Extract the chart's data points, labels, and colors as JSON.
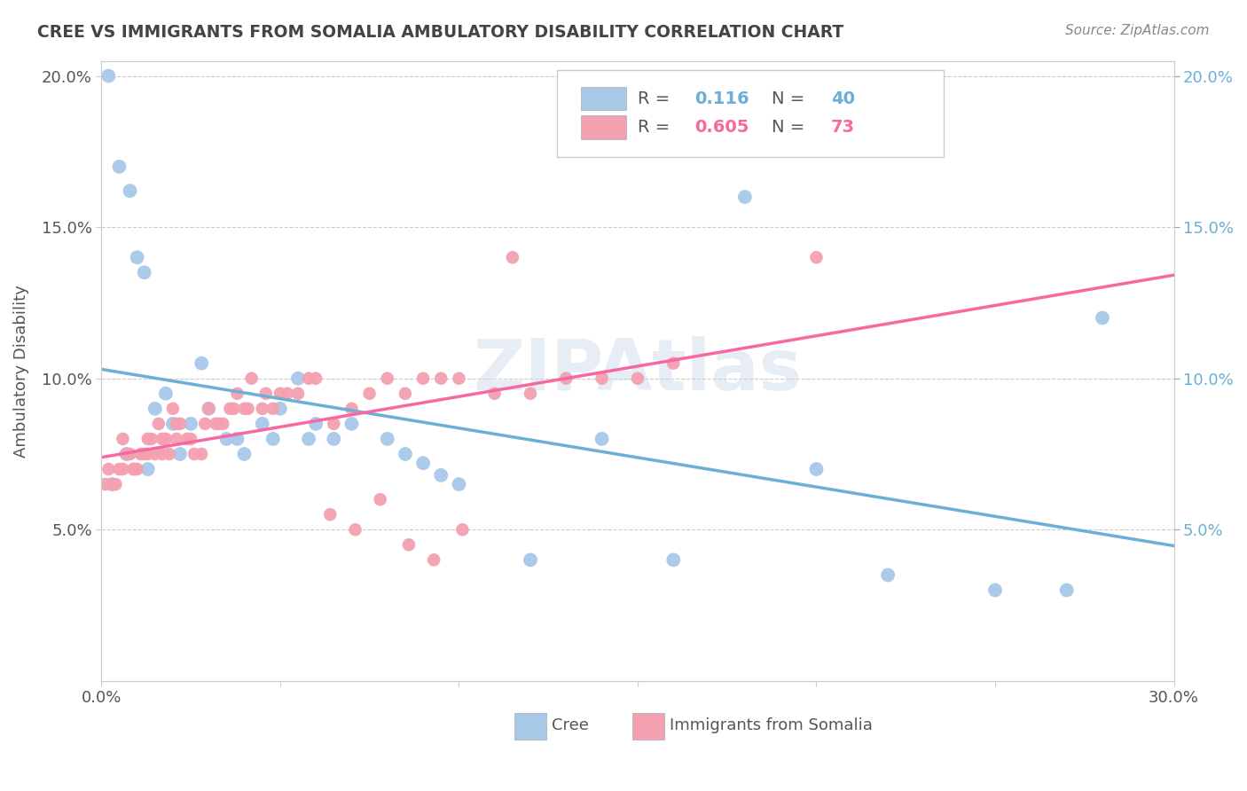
{
  "title": "CREE VS IMMIGRANTS FROM SOMALIA AMBULATORY DISABILITY CORRELATION CHART",
  "source": "Source: ZipAtlas.com",
  "ylabel": "Ambulatory Disability",
  "xlim": [
    0.0,
    0.3
  ],
  "ylim": [
    0.0,
    0.205
  ],
  "yticks": [
    0.05,
    0.1,
    0.15,
    0.2
  ],
  "yticklabels": [
    "5.0%",
    "10.0%",
    "15.0%",
    "20.0%"
  ],
  "cree_color": "#a8c8e8",
  "somalia_color": "#f4a0b0",
  "cree_line_color": "#6baed6",
  "somalia_line_color": "#f768a1",
  "R_cree": 0.116,
  "N_cree": 40,
  "R_somalia": 0.605,
  "N_somalia": 73,
  "background_color": "#ffffff",
  "grid_color": "#cccccc",
  "cree_x": [
    0.002,
    0.005,
    0.003,
    0.008,
    0.01,
    0.012,
    0.015,
    0.018,
    0.02,
    0.022,
    0.025,
    0.007,
    0.03,
    0.035,
    0.04,
    0.045,
    0.013,
    0.05,
    0.055,
    0.06,
    0.065,
    0.07,
    0.028,
    0.08,
    0.085,
    0.09,
    0.095,
    0.1,
    0.038,
    0.048,
    0.12,
    0.058,
    0.14,
    0.16,
    0.18,
    0.2,
    0.22,
    0.28,
    0.27,
    0.25
  ],
  "cree_y": [
    0.2,
    0.17,
    0.065,
    0.162,
    0.14,
    0.135,
    0.09,
    0.095,
    0.085,
    0.075,
    0.085,
    0.075,
    0.09,
    0.08,
    0.075,
    0.085,
    0.07,
    0.09,
    0.1,
    0.085,
    0.08,
    0.085,
    0.105,
    0.08,
    0.075,
    0.072,
    0.068,
    0.065,
    0.08,
    0.08,
    0.04,
    0.08,
    0.08,
    0.04,
    0.16,
    0.07,
    0.035,
    0.12,
    0.03,
    0.03
  ],
  "somalia_x": [
    0.001,
    0.002,
    0.003,
    0.004,
    0.005,
    0.006,
    0.007,
    0.008,
    0.009,
    0.01,
    0.011,
    0.012,
    0.013,
    0.014,
    0.015,
    0.016,
    0.017,
    0.018,
    0.019,
    0.02,
    0.021,
    0.022,
    0.024,
    0.026,
    0.028,
    0.03,
    0.032,
    0.034,
    0.036,
    0.038,
    0.04,
    0.042,
    0.045,
    0.048,
    0.05,
    0.055,
    0.06,
    0.065,
    0.07,
    0.075,
    0.08,
    0.085,
    0.09,
    0.095,
    0.1,
    0.11,
    0.12,
    0.13,
    0.14,
    0.15,
    0.16,
    0.003,
    0.006,
    0.009,
    0.013,
    0.017,
    0.021,
    0.025,
    0.029,
    0.033,
    0.037,
    0.041,
    0.046,
    0.052,
    0.058,
    0.064,
    0.071,
    0.078,
    0.086,
    0.093,
    0.101,
    0.115,
    0.2
  ],
  "somalia_y": [
    0.065,
    0.07,
    0.065,
    0.065,
    0.07,
    0.08,
    0.075,
    0.075,
    0.07,
    0.07,
    0.075,
    0.075,
    0.08,
    0.08,
    0.075,
    0.085,
    0.08,
    0.08,
    0.075,
    0.09,
    0.085,
    0.085,
    0.08,
    0.075,
    0.075,
    0.09,
    0.085,
    0.085,
    0.09,
    0.095,
    0.09,
    0.1,
    0.09,
    0.09,
    0.095,
    0.095,
    0.1,
    0.085,
    0.09,
    0.095,
    0.1,
    0.095,
    0.1,
    0.1,
    0.1,
    0.095,
    0.095,
    0.1,
    0.1,
    0.1,
    0.105,
    0.065,
    0.07,
    0.07,
    0.075,
    0.075,
    0.08,
    0.08,
    0.085,
    0.085,
    0.09,
    0.09,
    0.095,
    0.095,
    0.1,
    0.055,
    0.05,
    0.06,
    0.045,
    0.04,
    0.05,
    0.14,
    0.14
  ]
}
